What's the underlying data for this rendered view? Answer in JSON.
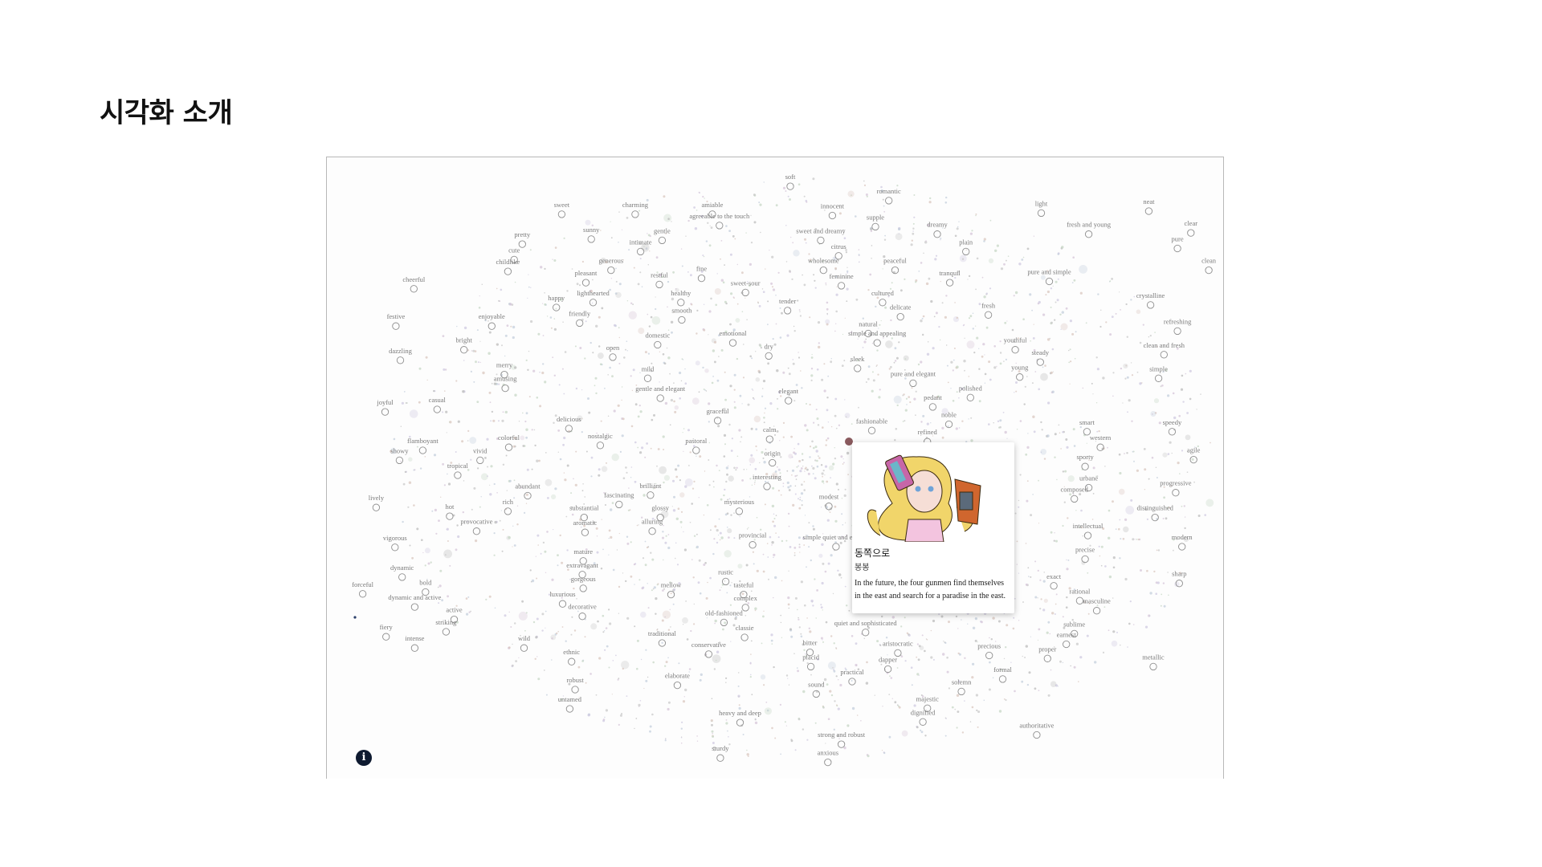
{
  "page": {
    "title": "시각화 소개"
  },
  "visualization": {
    "info_button_label": "i",
    "words": [
      [
        "soft",
        0.517,
        0.035
      ],
      [
        "romantic",
        0.627,
        0.058
      ],
      [
        "sweet",
        0.262,
        0.08
      ],
      [
        "charming",
        0.344,
        0.08
      ],
      [
        "amiable",
        0.43,
        0.08
      ],
      [
        "innocent",
        0.564,
        0.082
      ],
      [
        "light",
        0.797,
        0.078
      ],
      [
        "neat",
        0.917,
        0.075
      ],
      [
        "agreeable to the touch",
        0.438,
        0.098
      ],
      [
        "supple",
        0.612,
        0.1
      ],
      [
        "dreamy",
        0.681,
        0.112
      ],
      [
        "fresh and young",
        0.85,
        0.112
      ],
      [
        "clear",
        0.964,
        0.11
      ],
      [
        "sunny",
        0.295,
        0.12
      ],
      [
        "gentle",
        0.374,
        0.122
      ],
      [
        "sweet and dreamy",
        0.551,
        0.122
      ],
      [
        "pure",
        0.949,
        0.135
      ],
      [
        "pretty",
        0.218,
        0.128
      ],
      [
        "intimate",
        0.35,
        0.14
      ],
      [
        "plain",
        0.713,
        0.14
      ],
      [
        "citrus",
        0.571,
        0.147
      ],
      [
        "cute",
        0.209,
        0.153
      ],
      [
        "childlike",
        0.202,
        0.172
      ],
      [
        "generous",
        0.317,
        0.17
      ],
      [
        "wholesome",
        0.554,
        0.17
      ],
      [
        "peaceful",
        0.634,
        0.17
      ],
      [
        "clean",
        0.984,
        0.17
      ],
      [
        "pleasant",
        0.289,
        0.19
      ],
      [
        "restful",
        0.371,
        0.193
      ],
      [
        "fine",
        0.418,
        0.183
      ],
      [
        "sweet-sour",
        0.467,
        0.206
      ],
      [
        "feminine",
        0.574,
        0.195
      ],
      [
        "tranquil",
        0.695,
        0.19
      ],
      [
        "pure and simple",
        0.806,
        0.188
      ],
      [
        "cheerful",
        0.097,
        0.2
      ],
      [
        "lighthearted",
        0.297,
        0.222
      ],
      [
        "healthy",
        0.395,
        0.222
      ],
      [
        "tender",
        0.514,
        0.235
      ],
      [
        "cultured",
        0.62,
        0.222
      ],
      [
        "delicate",
        0.64,
        0.245
      ],
      [
        "crystalline",
        0.919,
        0.226
      ],
      [
        "happy",
        0.256,
        0.23
      ],
      [
        "friendly",
        0.282,
        0.255
      ],
      [
        "smooth",
        0.396,
        0.25
      ],
      [
        "fresh",
        0.738,
        0.242
      ],
      [
        "festive",
        0.077,
        0.26
      ],
      [
        "enjoyable",
        0.184,
        0.26
      ],
      [
        "natural",
        0.604,
        0.272
      ],
      [
        "refreshing",
        0.949,
        0.268
      ],
      [
        "domestic",
        0.369,
        0.29
      ],
      [
        "emotional",
        0.453,
        0.287
      ],
      [
        "simple and appealing",
        0.614,
        0.287
      ],
      [
        "bright",
        0.153,
        0.298
      ],
      [
        "youthful",
        0.768,
        0.298
      ],
      [
        "dry",
        0.493,
        0.308
      ],
      [
        "open",
        0.319,
        0.31
      ],
      [
        "clean and fresh",
        0.934,
        0.306
      ],
      [
        "dazzling",
        0.082,
        0.315
      ],
      [
        "steady",
        0.796,
        0.318
      ],
      [
        "sleek",
        0.592,
        0.328
      ],
      [
        "merry",
        0.198,
        0.338
      ],
      [
        "young",
        0.773,
        0.342
      ],
      [
        "mild",
        0.358,
        0.344
      ],
      [
        "simple",
        0.928,
        0.344
      ],
      [
        "pure and elegant",
        0.654,
        0.352
      ],
      [
        "amusing",
        0.199,
        0.36
      ],
      [
        "polished",
        0.718,
        0.375
      ],
      [
        "gentle and elegant",
        0.372,
        0.376
      ],
      [
        "elegant",
        0.515,
        0.38
      ],
      [
        "pedant",
        0.676,
        0.39
      ],
      [
        "casual",
        0.123,
        0.394
      ],
      [
        "joyful",
        0.065,
        0.398
      ],
      [
        "graceful",
        0.436,
        0.412
      ],
      [
        "noble",
        0.694,
        0.418
      ],
      [
        "delicious",
        0.27,
        0.425
      ],
      [
        "fashionable",
        0.608,
        0.428
      ],
      [
        "smart",
        0.848,
        0.43
      ],
      [
        "speedy",
        0.943,
        0.43
      ],
      [
        "calm",
        0.494,
        0.442
      ],
      [
        "refined",
        0.67,
        0.446
      ],
      [
        "nostalgic",
        0.305,
        0.452
      ],
      [
        "western",
        0.863,
        0.455
      ],
      [
        "flamboyant",
        0.107,
        0.46
      ],
      [
        "colorful",
        0.203,
        0.455
      ],
      [
        "pastoral",
        0.412,
        0.46
      ],
      [
        "agile",
        0.967,
        0.475
      ],
      [
        "vivid",
        0.171,
        0.476
      ],
      [
        "showy",
        0.081,
        0.476
      ],
      [
        "origin",
        0.497,
        0.48
      ],
      [
        "tropical",
        0.146,
        0.5
      ],
      [
        "sporty",
        0.846,
        0.486
      ],
      [
        "urbane",
        0.85,
        0.52
      ],
      [
        "progressive",
        0.947,
        0.528
      ],
      [
        "interesting",
        0.491,
        0.518
      ],
      [
        "brilliant",
        0.361,
        0.532
      ],
      [
        "abundant",
        0.224,
        0.533
      ],
      [
        "composed",
        0.834,
        0.538
      ],
      [
        "fascinating",
        0.326,
        0.547
      ],
      [
        "lively",
        0.055,
        0.552
      ],
      [
        "rich",
        0.202,
        0.558
      ],
      [
        "mysterious",
        0.46,
        0.558
      ],
      [
        "modest",
        0.56,
        0.55
      ],
      [
        "distinguished",
        0.924,
        0.568
      ],
      [
        "substantial",
        0.287,
        0.568
      ],
      [
        "hot",
        0.137,
        0.566
      ],
      [
        "glossy",
        0.372,
        0.568
      ],
      [
        "provocative",
        0.167,
        0.59
      ],
      [
        "alluring",
        0.363,
        0.59
      ],
      [
        "aromatic",
        0.288,
        0.592
      ],
      [
        "intellectual",
        0.849,
        0.597
      ],
      [
        "provincial",
        0.475,
        0.612
      ],
      [
        "simple quiet and elegant",
        0.568,
        0.615
      ],
      [
        "vigorous",
        0.076,
        0.616
      ],
      [
        "modern",
        0.954,
        0.615
      ],
      [
        "mature",
        0.286,
        0.638
      ],
      [
        "precise",
        0.846,
        0.635
      ],
      [
        "dynamic",
        0.084,
        0.664
      ],
      [
        "extravagant",
        0.285,
        0.66
      ],
      [
        "rustic",
        0.445,
        0.671
      ],
      [
        "exact",
        0.811,
        0.678
      ],
      [
        "sharp",
        0.951,
        0.674
      ],
      [
        "forceful",
        0.04,
        0.691
      ],
      [
        "bold",
        0.11,
        0.688
      ],
      [
        "gorgeous",
        0.286,
        0.682
      ],
      [
        "mellow",
        0.384,
        0.692
      ],
      [
        "tasteful",
        0.465,
        0.692
      ],
      [
        "luxurious",
        0.263,
        0.707
      ],
      [
        "dynamic and active",
        0.098,
        0.712
      ],
      [
        "complex",
        0.467,
        0.713
      ],
      [
        "decorative",
        0.285,
        0.727
      ],
      [
        "active",
        0.142,
        0.732
      ],
      [
        "rational",
        0.84,
        0.702
      ],
      [
        "masculine",
        0.859,
        0.718
      ],
      [
        "old-fashioned",
        0.443,
        0.737
      ],
      [
        "striking",
        0.133,
        0.752
      ],
      [
        "fiery",
        0.066,
        0.76
      ],
      [
        "classic",
        0.466,
        0.761
      ],
      [
        "quiet and sophisticated",
        0.601,
        0.753
      ],
      [
        "sublime",
        0.834,
        0.755
      ],
      [
        "earnest",
        0.825,
        0.772
      ],
      [
        "traditional",
        0.374,
        0.77
      ],
      [
        "intense",
        0.098,
        0.778
      ],
      [
        "wild",
        0.22,
        0.778
      ],
      [
        "bitter",
        0.539,
        0.785
      ],
      [
        "aristocratic",
        0.637,
        0.786
      ],
      [
        "conservative",
        0.426,
        0.788
      ],
      [
        "precious",
        0.739,
        0.79
      ],
      [
        "proper",
        0.804,
        0.795
      ],
      [
        "ethnic",
        0.273,
        0.8
      ],
      [
        "placid",
        0.54,
        0.808
      ],
      [
        "dapper",
        0.626,
        0.812
      ],
      [
        "metallic",
        0.922,
        0.808
      ],
      [
        "formal",
        0.754,
        0.828
      ],
      [
        "practical",
        0.586,
        0.832
      ],
      [
        "elaborate",
        0.391,
        0.838
      ],
      [
        "robust",
        0.277,
        0.845
      ],
      [
        "solemn",
        0.708,
        0.848
      ],
      [
        "sound",
        0.546,
        0.852
      ],
      [
        "untamed",
        0.271,
        0.876
      ],
      [
        "majestic",
        0.67,
        0.875
      ],
      [
        "dignified",
        0.665,
        0.897
      ],
      [
        "heavy and deep",
        0.461,
        0.898
      ],
      [
        "authoritative",
        0.792,
        0.918
      ],
      [
        "strong and robust",
        0.574,
        0.933
      ],
      [
        "sturdy",
        0.439,
        0.955
      ],
      [
        "anxious",
        0.559,
        0.962
      ]
    ]
  },
  "tooltip": {
    "title": "동쪽으로",
    "author": "봉봉",
    "description": "In the future, the four gunmen find themselves in the east and search for a paradise in the east."
  }
}
